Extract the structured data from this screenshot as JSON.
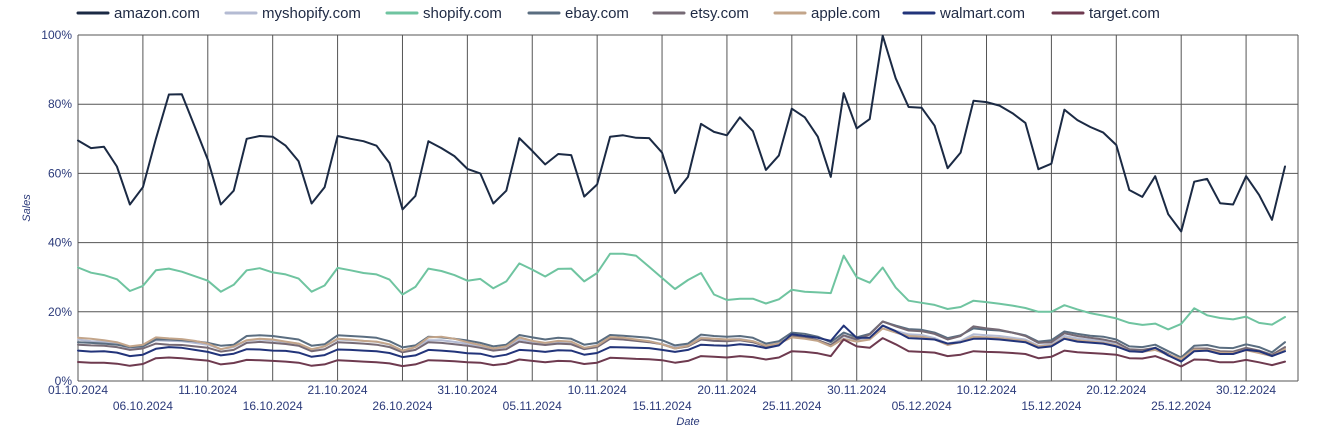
{
  "chart_data": {
    "type": "line",
    "xlabel": "Date",
    "ylabel": "Sales",
    "ylim": [
      0,
      100
    ],
    "grid": true,
    "legend_position": "top",
    "y_ticks": [
      "0%",
      "20%",
      "40%",
      "60%",
      "80%",
      "100%"
    ],
    "x_tick_labels": [
      "01.10.2024",
      "06.10.2024",
      "11.10.2024",
      "16.10.2024",
      "21.10.2024",
      "26.10.2024",
      "31.10.2024",
      "05.11.2024",
      "10.11.2024",
      "15.11.2024",
      "20.11.2024",
      "25.11.2024",
      "30.11.2024",
      "05.12.2024",
      "10.12.2024",
      "15.12.2024",
      "20.12.2024",
      "25.12.2024",
      "30.12.2024"
    ],
    "x_start": "2024-10-01",
    "x_end": "2025-01-03",
    "series": [
      {
        "name": "amazon.com",
        "color": "#1b2a44",
        "values": [
          69.5,
          67.3,
          67.7,
          62,
          51,
          56,
          70,
          82.8,
          82.9,
          73.5,
          64,
          51,
          55,
          70,
          70.8,
          70.6,
          68,
          63.5,
          51.3,
          56,
          70.8,
          70,
          69.3,
          68,
          63,
          49.6,
          53.5,
          69.3,
          67.3,
          65,
          61.3,
          60,
          51.3,
          55,
          70.2,
          66.5,
          62.6,
          65.6,
          65.3,
          53.3,
          56.8,
          70.6,
          71,
          70.3,
          70.2,
          66,
          54.3,
          59,
          74.3,
          72,
          71,
          76.2,
          72.2,
          61,
          65.2,
          78.7,
          76.2,
          70.6,
          59,
          83.2,
          73,
          75.7,
          99.8,
          87.5,
          79.2,
          79,
          73.8,
          61.5,
          66,
          81,
          80.6,
          79.6,
          77.4,
          74.6,
          61.2,
          62.8,
          78.4,
          75.4,
          73.4,
          71.8,
          68.2,
          55.2,
          53.2,
          59.2,
          48.2,
          43.2,
          57.6,
          58.4,
          51.4,
          51,
          59.2,
          53.8,
          46.6,
          62
        ]
      },
      {
        "name": "myshopify.com",
        "color": "#b4bbd3",
        "values": [
          12,
          11.5,
          11.3,
          10.8,
          9.2,
          10,
          11.8,
          11.6,
          11.5,
          11,
          10.5,
          9.2,
          9.8,
          11.7,
          12,
          11.7,
          11.2,
          10.8,
          9,
          10,
          12,
          11.8,
          11.6,
          11.3,
          10.5,
          8.5,
          9.8,
          11.8,
          11.8,
          11.3,
          10.8,
          10,
          9.3,
          9.8,
          12,
          11.4,
          10.7,
          11.2,
          11,
          9.5,
          10.3,
          12.3,
          12,
          11.7,
          11.5,
          10.7,
          9.7,
          10.3,
          12.6,
          12.2,
          12,
          12.2,
          11.5,
          10.2,
          11,
          13,
          12.6,
          11.8,
          10.2,
          13,
          11.8,
          12.5,
          16,
          14.5,
          13.5,
          13.3,
          12.4,
          10.8,
          11.6,
          13.5,
          13.2,
          13,
          12.5,
          12,
          10.2,
          10.6,
          13,
          12.3,
          11.9,
          11.5,
          10.8,
          9,
          8.7,
          9.5,
          7.3,
          6.2,
          9.2,
          9.2,
          8.2,
          8.1,
          9.3,
          8.5,
          7.3,
          9.5
        ]
      },
      {
        "name": "shopify.com",
        "color": "#6fc4a0",
        "values": [
          32.8,
          31.3,
          30.6,
          29.4,
          26,
          27.5,
          32,
          32.5,
          31.6,
          30.3,
          29,
          25.8,
          27.8,
          32,
          32.6,
          31.4,
          30.8,
          29.6,
          25.8,
          27.6,
          32.7,
          32,
          31.2,
          30.8,
          29.3,
          25,
          27.2,
          32.5,
          31.8,
          30.6,
          29,
          29.5,
          26.8,
          28.8,
          34,
          32.2,
          30.2,
          32.4,
          32.5,
          28.8,
          31.2,
          36.8,
          36.8,
          36.2,
          33,
          29.8,
          26.6,
          29.2,
          31.2,
          25,
          23.4,
          23.8,
          23.8,
          22.4,
          23.6,
          26.4,
          25.8,
          25.6,
          25.4,
          36.2,
          30,
          28.4,
          32.8,
          27,
          23.2,
          22.6,
          22,
          20.8,
          21.4,
          23.2,
          22.8,
          22.3,
          21.8,
          21.1,
          20,
          20,
          21.9,
          20.7,
          19.6,
          18.9,
          18.1,
          16.8,
          16.2,
          16.6,
          14.9,
          16.5,
          21,
          19,
          18.2,
          17.8,
          18.6,
          16.8,
          16.3,
          18.5
        ]
      },
      {
        "name": "ebay.com",
        "color": "#5a6d80",
        "values": [
          11.2,
          11,
          10.8,
          10.5,
          9.8,
          10,
          12,
          12,
          11.8,
          11.5,
          11,
          10.2,
          10.5,
          13,
          13.2,
          13,
          12.5,
          12,
          10.2,
          10.6,
          13.2,
          13,
          12.8,
          12.5,
          11.5,
          9.7,
          10.3,
          12.8,
          12.6,
          12.2,
          11.7,
          11,
          10,
          10.5,
          13.3,
          12.6,
          12,
          12.5,
          12.2,
          10.5,
          11,
          13.3,
          13.1,
          12.8,
          12.5,
          11.8,
          10.3,
          10.8,
          13.4,
          13,
          12.8,
          13,
          12.5,
          10.8,
          11.5,
          14,
          13.6,
          12.8,
          11.2,
          14,
          12.6,
          13.6,
          17.2,
          16,
          15,
          14.8,
          14,
          12.4,
          13.2,
          15.2,
          14.8,
          14.6,
          14,
          13.2,
          11.4,
          11.8,
          14.3,
          13.6,
          13.1,
          12.8,
          12,
          10,
          9.8,
          10.5,
          8.6,
          6.8,
          10.2,
          10.4,
          9.6,
          9.5,
          10.6,
          9.8,
          8.3,
          11.2
        ]
      },
      {
        "name": "etsy.com",
        "color": "#766a75",
        "values": [
          10.5,
          10.3,
          10.2,
          9.8,
          9,
          9.4,
          10.8,
          10.5,
          10.4,
          10,
          9.6,
          8.5,
          9,
          11,
          11.3,
          11,
          10.7,
          10.2,
          8.6,
          9.2,
          11.2,
          11,
          10.8,
          10.5,
          9.8,
          8.3,
          9,
          11.2,
          11,
          10.6,
          10.2,
          9.6,
          8.8,
          9.2,
          11.4,
          10.8,
          10.4,
          10.8,
          10.6,
          9.2,
          9.8,
          12.2,
          12,
          11.6,
          11.2,
          10.6,
          9.4,
          10,
          12,
          11.6,
          11.5,
          11.8,
          11.2,
          10,
          10.8,
          13,
          12.6,
          11.8,
          10.4,
          13.2,
          12,
          13.4,
          17.2,
          15.8,
          14.6,
          14.4,
          13.6,
          12,
          13,
          15.8,
          15.2,
          14.8,
          14,
          13,
          11,
          11.2,
          13.8,
          13,
          12.5,
          12,
          11.2,
          9.2,
          9,
          9.6,
          7.8,
          6,
          9.4,
          9.4,
          8.6,
          8.5,
          9.6,
          8.8,
          7.6,
          9.8
        ]
      },
      {
        "name": "apple.com",
        "color": "#c3a58a",
        "values": [
          12.5,
          12.2,
          11.8,
          11.2,
          10,
          10.5,
          12.6,
          12.3,
          12.1,
          11.6,
          10.8,
          9.2,
          10,
          11.8,
          12.2,
          12,
          11.4,
          10.8,
          9.2,
          10,
          12.2,
          12,
          11.6,
          11.4,
          10.6,
          8.8,
          9.8,
          12.6,
          12.8,
          12.2,
          11.2,
          10.4,
          9.4,
          10,
          12.6,
          11.6,
          11,
          11.6,
          11.4,
          9.6,
          10.2,
          12.7,
          12.5,
          12,
          11.5,
          10.6,
          9.4,
          10.2,
          12.4,
          12.2,
          12,
          12,
          11.5,
          10.2,
          10.8,
          12.6,
          12.2,
          11.6,
          10,
          12.2,
          11.4,
          12,
          15.2,
          14,
          13,
          12.8,
          12,
          10.4,
          11.2,
          12.8,
          12.6,
          12.4,
          12,
          11.6,
          10,
          10.3,
          12.4,
          11.8,
          11.4,
          11,
          10.3,
          8.6,
          8.4,
          9,
          7.6,
          6.4,
          9.1,
          9,
          8.2,
          8.1,
          8.9,
          8.1,
          7.2,
          9.2
        ]
      },
      {
        "name": "walmart.com",
        "color": "#22347a",
        "values": [
          8.8,
          8.5,
          8.6,
          8.2,
          7.2,
          7.6,
          9.3,
          9.8,
          9.6,
          9,
          8.4,
          7.4,
          7.9,
          9.2,
          9.1,
          8.8,
          8.7,
          8.2,
          7,
          7.5,
          9.1,
          9,
          8.8,
          8.6,
          8.1,
          6.9,
          7.4,
          9,
          8.8,
          8.5,
          8,
          7.9,
          7,
          7.6,
          9,
          8.8,
          8.4,
          8.9,
          8.8,
          7.6,
          8.1,
          9.8,
          9.7,
          9.6,
          9.5,
          9,
          8.4,
          9,
          10.5,
          10.3,
          10.2,
          10.6,
          10.3,
          9.5,
          10.3,
          13.5,
          13,
          12.5,
          11.6,
          16,
          12.5,
          12.5,
          16,
          14.4,
          12.4,
          12.2,
          12,
          10.8,
          11.2,
          12.2,
          12.2,
          12,
          11.6,
          11.2,
          9.6,
          10,
          12.2,
          11.4,
          11.1,
          10.8,
          10,
          8.6,
          8.4,
          9.6,
          7.4,
          5.6,
          8.6,
          8.8,
          7.8,
          7.8,
          9,
          8.6,
          7.2,
          8.6
        ]
      },
      {
        "name": "target.com",
        "color": "#6e3a4f",
        "values": [
          5.5,
          5.3,
          5.3,
          5,
          4.4,
          4.9,
          6.6,
          6.8,
          6.6,
          6.2,
          5.9,
          4.8,
          5.2,
          6.1,
          6,
          5.8,
          5.6,
          5.3,
          4.4,
          4.8,
          6,
          5.8,
          5.6,
          5.4,
          5.1,
          4.3,
          4.8,
          6,
          5.9,
          5.7,
          5.4,
          5.3,
          4.6,
          5,
          6.2,
          5.8,
          5.4,
          5.8,
          5.7,
          4.9,
          5.3,
          6.7,
          6.6,
          6.4,
          6.3,
          6,
          5.3,
          5.8,
          7.2,
          7,
          6.8,
          7.2,
          6.9,
          6.2,
          6.8,
          8.6,
          8.4,
          8,
          7.2,
          12,
          10,
          9.6,
          12.4,
          10.6,
          8.6,
          8.4,
          8.2,
          7.2,
          7.6,
          8.6,
          8.4,
          8.3,
          8.1,
          7.8,
          6.6,
          7,
          8.8,
          8.3,
          8.1,
          7.9,
          7.6,
          6.6,
          6.5,
          7.2,
          5.8,
          4.2,
          6.2,
          6.1,
          5.4,
          5.4,
          6.1,
          5.4,
          4.6,
          5.6
        ]
      }
    ]
  }
}
